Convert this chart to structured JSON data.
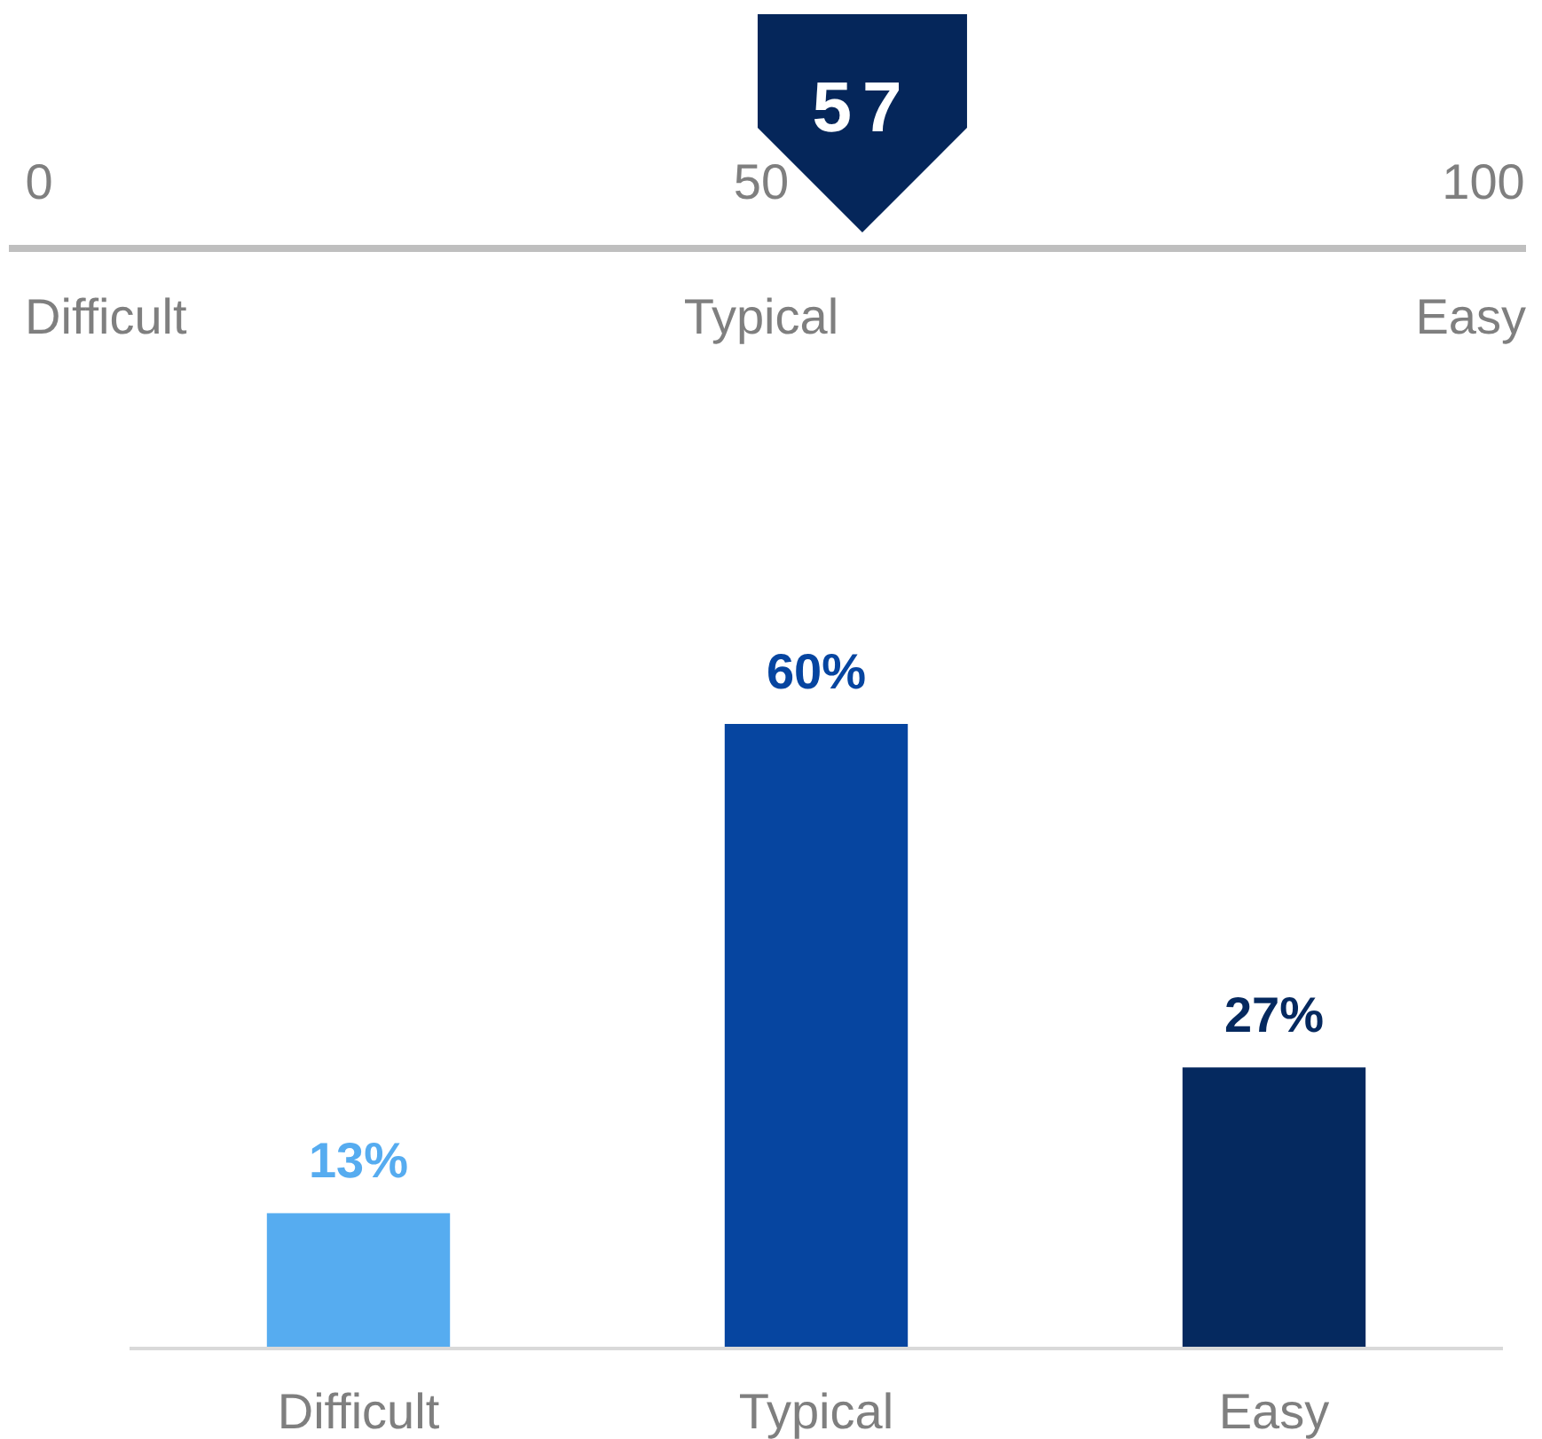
{
  "chart_data": [
    {
      "type": "other",
      "values": [
        57
      ],
      "color": "#05265a",
      "data_labels": true,
      "annotations": [
        "0",
        "50",
        "100",
        "Difficult",
        "Typical",
        "Easy"
      ]
    },
    {
      "type": "bar",
      "categories": [
        "Difficult",
        "Typical",
        "Easy"
      ],
      "values": [
        13,
        60,
        27
      ],
      "colors": [
        "#56acf0",
        "#0645a0",
        "#05295f"
      ],
      "value_labels": [
        "13%",
        "60%",
        "27%"
      ]
    }
  ]
}
